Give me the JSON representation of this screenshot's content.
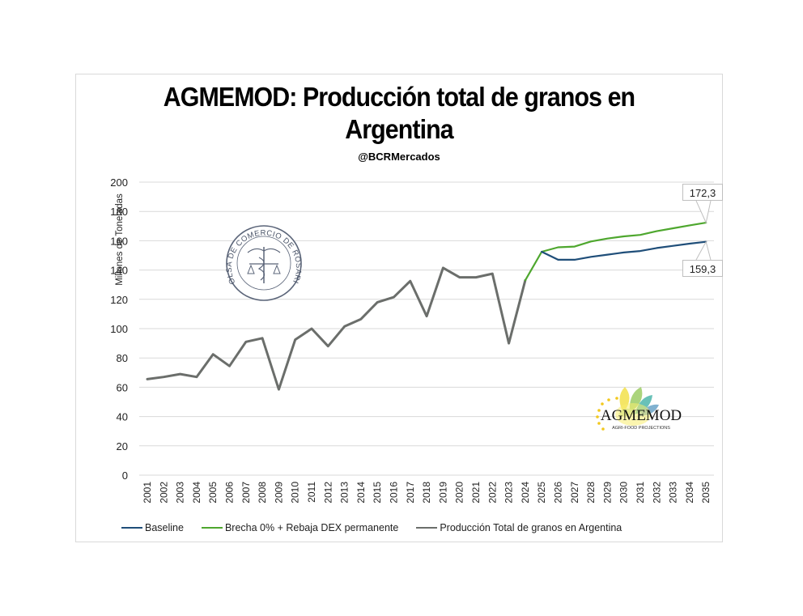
{
  "header": {
    "title_line1": "AGMEMOD: Producción total de granos en",
    "title_line2": "Argentina",
    "subtitle": "@BCRMercados"
  },
  "axes": {
    "ylabel": "Millones de Toneladas",
    "y_ticks": [
      "0",
      "20",
      "40",
      "60",
      "80",
      "100",
      "120",
      "140",
      "160",
      "180",
      "200"
    ]
  },
  "legend": {
    "items": [
      {
        "label": "Baseline",
        "color": "#1f4e79"
      },
      {
        "label": "Brecha 0% + Rebaja DEX permanente",
        "color": "#4ea72e"
      },
      {
        "label": "Producción Total de granos en Argentina",
        "color": "#6b6e6b"
      }
    ]
  },
  "callouts": {
    "green_end": "172,3",
    "blue_end": "159,3"
  },
  "logos": {
    "seal_text": "BOLSA DE COMERCIO DE ROSARIO",
    "agmemod_name": "AGMEMOD",
    "agmemod_tagline": "AGRI-FOOD PROJECTIONS"
  },
  "chart_data": {
    "type": "line",
    "title": "AGMEMOD: Producción total de granos en Argentina",
    "subtitle": "@BCRMercados",
    "xlabel": "",
    "ylabel": "Millones de Toneladas",
    "ylim": [
      0,
      200
    ],
    "y_tick_step": 20,
    "grid": true,
    "legend_position": "bottom",
    "categories": [
      "2001",
      "2002",
      "2003",
      "2004",
      "2005",
      "2006",
      "2007",
      "2008",
      "2009",
      "2010",
      "2011",
      "2012",
      "2013",
      "2014",
      "2015",
      "2016",
      "2017",
      "2018",
      "2019",
      "2020",
      "2021",
      "2022",
      "2023",
      "2024",
      "2025",
      "2026",
      "2027",
      "2028",
      "2029",
      "2030",
      "2031",
      "2032",
      "2033",
      "2034",
      "2035"
    ],
    "series": [
      {
        "name": "Producción Total de granos en Argentina",
        "color": "#6b6e6b",
        "values": [
          65.5,
          67,
          69,
          67,
          82.5,
          74.5,
          91,
          93.5,
          58.5,
          92.5,
          100,
          88,
          101.5,
          106.5,
          118,
          121.5,
          132.5,
          108.5,
          141.5,
          135,
          135,
          137.5,
          90,
          133,
          null,
          null,
          null,
          null,
          null,
          null,
          null,
          null,
          null,
          null,
          null
        ]
      },
      {
        "name": "Brecha 0% + Rebaja DEX permanente",
        "color": "#4ea72e",
        "values": [
          null,
          null,
          null,
          null,
          null,
          null,
          null,
          null,
          null,
          null,
          null,
          null,
          null,
          null,
          null,
          null,
          null,
          null,
          null,
          null,
          null,
          null,
          null,
          133,
          152.5,
          155.5,
          156,
          159.5,
          161.5,
          163,
          164,
          166.5,
          168.5,
          170.5,
          172.3
        ]
      },
      {
        "name": "Baseline",
        "color": "#1f4e79",
        "values": [
          null,
          null,
          null,
          null,
          null,
          null,
          null,
          null,
          null,
          null,
          null,
          null,
          null,
          null,
          null,
          null,
          null,
          null,
          null,
          null,
          null,
          null,
          null,
          null,
          152.5,
          147,
          147,
          149,
          150.5,
          152,
          153,
          155,
          156.5,
          158,
          159.3
        ]
      }
    ],
    "annotations": [
      {
        "text": "172,3",
        "x": "2035",
        "series": "Brecha 0% + Rebaja DEX permanente"
      },
      {
        "text": "159,3",
        "x": "2035",
        "series": "Baseline"
      }
    ]
  }
}
